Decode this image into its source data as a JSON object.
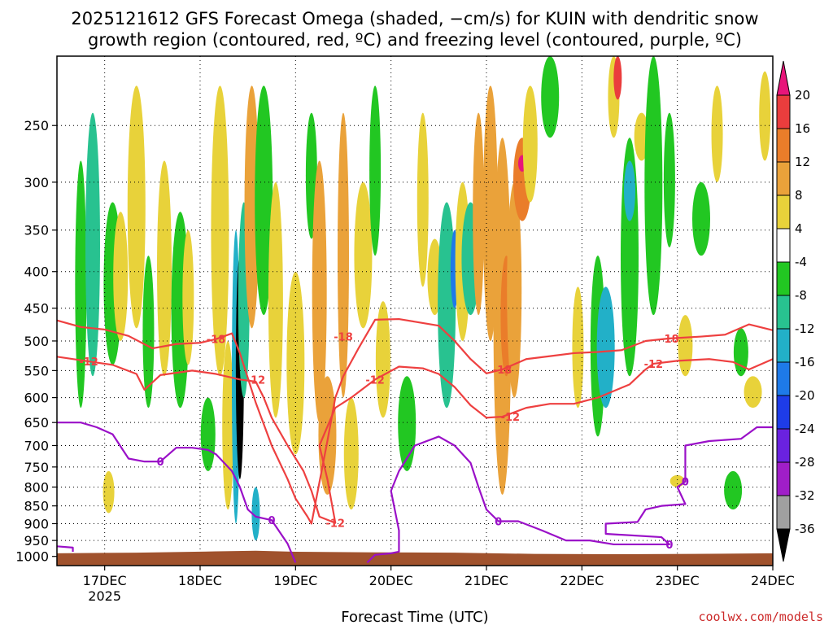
{
  "chart_data": {
    "type": "heatmap",
    "title_line1": "2025121612 GFS Forecast Omega (shaded, −cm/s) for KUIN with dendritic snow",
    "title_line2": "growth region (contoured, red, ºC) and freezing level (contoured, purple, ºC)",
    "xlabel": "Forecast Time (UTC)",
    "credit": "coolwx.com/models",
    "x_range_hours": [
      0,
      180
    ],
    "x_ticks": [
      {
        "label": "17DEC",
        "hour": 12,
        "sub": "2025"
      },
      {
        "label": "18DEC",
        "hour": 36,
        "sub": ""
      },
      {
        "label": "19DEC",
        "hour": 60,
        "sub": ""
      },
      {
        "label": "20DEC",
        "hour": 84,
        "sub": ""
      },
      {
        "label": "21DEC",
        "hour": 108,
        "sub": ""
      },
      {
        "label": "22DEC",
        "hour": 132,
        "sub": ""
      },
      {
        "label": "23DEC",
        "hour": 156,
        "sub": ""
      },
      {
        "label": "24DEC",
        "hour": 180,
        "sub": ""
      }
    ],
    "y_axis": "pressure (hPa)",
    "y_range": [
      1030,
      200
    ],
    "y_ticks": [
      250,
      300,
      350,
      400,
      450,
      500,
      550,
      600,
      650,
      700,
      750,
      800,
      850,
      900,
      950,
      1000
    ],
    "grid": true,
    "colorbar": {
      "labels": [
        20,
        16,
        12,
        8,
        4,
        -4,
        -8,
        -12,
        -16,
        -20,
        -24,
        -28,
        -32,
        -36
      ],
      "bins": [
        {
          "min": 20,
          "max": 24,
          "color": "#e8157a"
        },
        {
          "min": 16,
          "max": 20,
          "color": "#ea3d3d"
        },
        {
          "min": 12,
          "max": 16,
          "color": "#ea7d2a"
        },
        {
          "min": 8,
          "max": 12,
          "color": "#eaa23a"
        },
        {
          "min": 4,
          "max": 8,
          "color": "#e8d23a"
        },
        {
          "min": -4,
          "max": 4,
          "color": "#ffffff"
        },
        {
          "min": -8,
          "max": -4,
          "color": "#22c722"
        },
        {
          "min": -12,
          "max": -8,
          "color": "#28c290"
        },
        {
          "min": -16,
          "max": -12,
          "color": "#22b0c8"
        },
        {
          "min": -20,
          "max": -16,
          "color": "#1e7ae8"
        },
        {
          "min": -24,
          "max": -20,
          "color": "#1e3ce8"
        },
        {
          "min": -28,
          "max": -24,
          "color": "#6a22e0"
        },
        {
          "min": -32,
          "max": -28,
          "color": "#a01ec8"
        },
        {
          "min": -36,
          "max": -32,
          "color": "#a0a0a0"
        },
        {
          "min": -40,
          "max": -36,
          "color": "#000000"
        }
      ]
    },
    "omega_features": [
      {
        "hour": 6,
        "p_top": 280,
        "p_bot": 620,
        "value": -6
      },
      {
        "hour": 9,
        "p_top": 240,
        "p_bot": 560,
        "value": -10
      },
      {
        "hour": 14,
        "p_top": 320,
        "p_bot": 540,
        "value": -6
      },
      {
        "hour": 13,
        "p_top": 760,
        "p_bot": 870,
        "value": 6
      },
      {
        "hour": 16,
        "p_top": 330,
        "p_bot": 500,
        "value": 6
      },
      {
        "hour": 20,
        "p_top": 220,
        "p_bot": 480,
        "value": 6
      },
      {
        "hour": 23,
        "p_top": 380,
        "p_bot": 620,
        "value": -6
      },
      {
        "hour": 27,
        "p_top": 280,
        "p_bot": 560,
        "value": 5
      },
      {
        "hour": 31,
        "p_top": 330,
        "p_bot": 620,
        "value": -6
      },
      {
        "hour": 33,
        "p_top": 350,
        "p_bot": 540,
        "value": 5
      },
      {
        "hour": 38,
        "p_top": 600,
        "p_bot": 760,
        "value": -6
      },
      {
        "hour": 41,
        "p_top": 220,
        "p_bot": 560,
        "value": 6
      },
      {
        "hour": 43,
        "p_top": 500,
        "p_bot": 860,
        "value": 7
      },
      {
        "hour": 45,
        "p_top": 350,
        "p_bot": 900,
        "value": -16
      },
      {
        "hour": 46,
        "p_top": 380,
        "p_bot": 780,
        "value": -38
      },
      {
        "hour": 47,
        "p_top": 320,
        "p_bot": 600,
        "value": -10
      },
      {
        "hour": 49,
        "p_top": 220,
        "p_bot": 480,
        "value": 9
      },
      {
        "hour": 52,
        "p_top": 220,
        "p_bot": 460,
        "value": -6
      },
      {
        "hour": 50,
        "p_top": 800,
        "p_bot": 950,
        "value": -16
      },
      {
        "hour": 55,
        "p_top": 300,
        "p_bot": 640,
        "value": 6
      },
      {
        "hour": 60,
        "p_top": 400,
        "p_bot": 720,
        "value": 5
      },
      {
        "hour": 64,
        "p_top": 240,
        "p_bot": 360,
        "value": -6
      },
      {
        "hour": 66,
        "p_top": 280,
        "p_bot": 650,
        "value": 10
      },
      {
        "hour": 68,
        "p_top": 560,
        "p_bot": 820,
        "value": 8
      },
      {
        "hour": 72,
        "p_top": 240,
        "p_bot": 600,
        "value": 9
      },
      {
        "hour": 74,
        "p_top": 600,
        "p_bot": 860,
        "value": 6
      },
      {
        "hour": 77,
        "p_top": 300,
        "p_bot": 480,
        "value": 5
      },
      {
        "hour": 80,
        "p_top": 220,
        "p_bot": 380,
        "value": -6
      },
      {
        "hour": 82,
        "p_top": 440,
        "p_bot": 640,
        "value": 5
      },
      {
        "hour": 88,
        "p_top": 560,
        "p_bot": 760,
        "value": -6
      },
      {
        "hour": 92,
        "p_top": 240,
        "p_bot": 420,
        "value": 5
      },
      {
        "hour": 95,
        "p_top": 360,
        "p_bot": 460,
        "value": 5
      },
      {
        "hour": 98,
        "p_top": 320,
        "p_bot": 620,
        "value": -10
      },
      {
        "hour": 100,
        "p_top": 350,
        "p_bot": 450,
        "value": -18
      },
      {
        "hour": 102,
        "p_top": 300,
        "p_bot": 500,
        "value": 6
      },
      {
        "hour": 104,
        "p_top": 320,
        "p_bot": 460,
        "value": -12
      },
      {
        "hour": 106,
        "p_top": 240,
        "p_bot": 460,
        "value": 10
      },
      {
        "hour": 109,
        "p_top": 220,
        "p_bot": 500,
        "value": 8
      },
      {
        "hour": 112,
        "p_top": 260,
        "p_bot": 820,
        "value": 10
      },
      {
        "hour": 113,
        "p_top": 380,
        "p_bot": 560,
        "value": 14
      },
      {
        "hour": 115,
        "p_top": 300,
        "p_bot": 600,
        "value": 8
      },
      {
        "hour": 117,
        "p_top": 260,
        "p_bot": 340,
        "value": 14
      },
      {
        "hour": 117,
        "p_top": 275,
        "p_bot": 290,
        "value": 21
      },
      {
        "hour": 119,
        "p_top": 220,
        "p_bot": 320,
        "value": 5
      },
      {
        "hour": 124,
        "p_top": 200,
        "p_bot": 260,
        "value": -6
      },
      {
        "hour": 131,
        "p_top": 420,
        "p_bot": 620,
        "value": 5
      },
      {
        "hour": 136,
        "p_top": 380,
        "p_bot": 680,
        "value": -7
      },
      {
        "hour": 138,
        "p_top": 420,
        "p_bot": 620,
        "value": -13
      },
      {
        "hour": 140,
        "p_top": 200,
        "p_bot": 260,
        "value": 6
      },
      {
        "hour": 141,
        "p_top": 200,
        "p_bot": 230,
        "value": 18
      },
      {
        "hour": 144,
        "p_top": 260,
        "p_bot": 560,
        "value": -6
      },
      {
        "hour": 144,
        "p_top": 280,
        "p_bot": 340,
        "value": -13
      },
      {
        "hour": 147,
        "p_top": 240,
        "p_bot": 280,
        "value": 5
      },
      {
        "hour": 150,
        "p_top": 200,
        "p_bot": 460,
        "value": -7
      },
      {
        "hour": 154,
        "p_top": 240,
        "p_bot": 370,
        "value": -6
      },
      {
        "hour": 158,
        "p_top": 460,
        "p_bot": 560,
        "value": 5
      },
      {
        "hour": 162,
        "p_top": 300,
        "p_bot": 380,
        "value": -6
      },
      {
        "hour": 166,
        "p_top": 220,
        "p_bot": 300,
        "value": 5
      },
      {
        "hour": 172,
        "p_top": 480,
        "p_bot": 560,
        "value": -6
      },
      {
        "hour": 175,
        "p_top": 560,
        "p_bot": 620,
        "value": 5
      },
      {
        "hour": 178,
        "p_top": 210,
        "p_bot": 280,
        "value": 5
      },
      {
        "hour": 156,
        "p_top": 770,
        "p_bot": 800,
        "value": 5
      },
      {
        "hour": 170,
        "p_top": 760,
        "p_bot": 860,
        "value": -6
      }
    ],
    "contours": [
      {
        "name": "dgz-minus18",
        "color": "#ee4040",
        "label": "-18",
        "label_at": [
          [
            40,
            497
          ],
          [
            72,
            493
          ],
          [
            112,
            548
          ],
          [
            154,
            496
          ]
        ],
        "points": [
          [
            0,
            468
          ],
          [
            6,
            478
          ],
          [
            12,
            482
          ],
          [
            18,
            492
          ],
          [
            24,
            512
          ],
          [
            30,
            505
          ],
          [
            36,
            503
          ],
          [
            40,
            497
          ],
          [
            44,
            488
          ],
          [
            46,
            520
          ],
          [
            50,
            610
          ],
          [
            54,
            700
          ],
          [
            58,
            780
          ],
          [
            60,
            830
          ],
          [
            63,
            880
          ],
          [
            64,
            900
          ],
          [
            68,
            690
          ],
          [
            70,
            600
          ],
          [
            72,
            560
          ],
          [
            76,
            510
          ],
          [
            80,
            467
          ],
          [
            86,
            466
          ],
          [
            90,
            470
          ],
          [
            96,
            476
          ],
          [
            100,
            500
          ],
          [
            104,
            530
          ],
          [
            108,
            555
          ],
          [
            112,
            548
          ],
          [
            118,
            530
          ],
          [
            124,
            525
          ],
          [
            130,
            520
          ],
          [
            136,
            518
          ],
          [
            142,
            515
          ],
          [
            148,
            500
          ],
          [
            154,
            496
          ],
          [
            162,
            493
          ],
          [
            168,
            490
          ],
          [
            174,
            474
          ],
          [
            180,
            483
          ]
        ]
      },
      {
        "name": "dgz-minus12",
        "color": "#ee4040",
        "label": "-12",
        "label_at": [
          [
            8,
            534
          ],
          [
            50,
            566
          ],
          [
            80,
            566
          ],
          [
            114,
            638
          ],
          [
            150,
            538
          ],
          [
            70,
            898
          ]
        ],
        "points": [
          [
            0,
            526
          ],
          [
            8,
            534
          ],
          [
            14,
            540
          ],
          [
            20,
            556
          ],
          [
            22,
            585
          ],
          [
            26,
            558
          ],
          [
            34,
            550
          ],
          [
            40,
            556
          ],
          [
            46,
            566
          ],
          [
            50,
            570
          ],
          [
            52,
            600
          ],
          [
            54,
            640
          ],
          [
            58,
            700
          ],
          [
            62,
            760
          ],
          [
            64,
            810
          ],
          [
            66,
            880
          ],
          [
            70,
            898
          ],
          [
            68,
            780
          ],
          [
            66,
            700
          ],
          [
            70,
            620
          ],
          [
            74,
            600
          ],
          [
            80,
            566
          ],
          [
            86,
            543
          ],
          [
            92,
            546
          ],
          [
            96,
            556
          ],
          [
            100,
            580
          ],
          [
            104,
            615
          ],
          [
            108,
            640
          ],
          [
            112,
            638
          ],
          [
            118,
            620
          ],
          [
            124,
            612
          ],
          [
            130,
            612
          ],
          [
            136,
            600
          ],
          [
            144,
            575
          ],
          [
            148,
            548
          ],
          [
            150,
            538
          ],
          [
            156,
            533
          ],
          [
            164,
            530
          ],
          [
            170,
            535
          ],
          [
            174,
            548
          ],
          [
            180,
            530
          ]
        ]
      },
      {
        "name": "freezing-level-west",
        "color": "#9a10c8",
        "label": "0",
        "label_at": [
          [
            26,
            737
          ],
          [
            54,
            890
          ]
        ],
        "points": [
          [
            0,
            650
          ],
          [
            6,
            650
          ],
          [
            10,
            660
          ],
          [
            14,
            675
          ],
          [
            18,
            730
          ],
          [
            22,
            737
          ],
          [
            26,
            737
          ],
          [
            30,
            705
          ],
          [
            34,
            705
          ],
          [
            38,
            710
          ],
          [
            40,
            720
          ],
          [
            44,
            760
          ],
          [
            46,
            800
          ],
          [
            48,
            860
          ],
          [
            50,
            880
          ],
          [
            54,
            890
          ],
          [
            58,
            960
          ],
          [
            60,
            1020
          ]
        ]
      },
      {
        "name": "freezing-level-east",
        "color": "#9a10c8",
        "label": "0",
        "label_at": [
          [
            111,
            893
          ],
          [
            154,
            962
          ],
          [
            158,
            786
          ]
        ],
        "points": [
          [
            78,
            1020
          ],
          [
            80,
            995
          ],
          [
            84,
            990
          ],
          [
            86,
            985
          ],
          [
            86,
            920
          ],
          [
            84,
            810
          ],
          [
            86,
            760
          ],
          [
            90,
            700
          ],
          [
            96,
            680
          ],
          [
            100,
            700
          ],
          [
            104,
            740
          ],
          [
            106,
            800
          ],
          [
            108,
            860
          ],
          [
            111,
            893
          ],
          [
            116,
            893
          ],
          [
            122,
            920
          ],
          [
            128,
            950
          ],
          [
            134,
            950
          ],
          [
            140,
            962
          ],
          [
            146,
            962
          ],
          [
            154,
            962
          ],
          [
            152,
            940
          ],
          [
            138,
            930
          ],
          [
            138,
            900
          ],
          [
            146,
            895
          ],
          [
            148,
            860
          ],
          [
            152,
            850
          ],
          [
            158,
            845
          ],
          [
            156,
            800
          ],
          [
            158,
            786
          ],
          [
            158,
            700
          ],
          [
            164,
            690
          ],
          [
            172,
            685
          ],
          [
            176,
            660
          ],
          [
            180,
            660
          ]
        ]
      },
      {
        "name": "freezing-level-left-stub",
        "color": "#9a10c8",
        "label": "",
        "label_at": [],
        "points": [
          [
            0,
            968
          ],
          [
            4,
            972
          ],
          [
            4,
            985
          ]
        ]
      }
    ],
    "terrain": {
      "color": "#a0522d",
      "surface_p": [
        [
          0,
          990
        ],
        [
          20,
          988
        ],
        [
          40,
          984
        ],
        [
          50,
          982
        ],
        [
          60,
          985
        ],
        [
          80,
          987
        ],
        [
          100,
          988
        ],
        [
          120,
          992
        ],
        [
          140,
          993
        ],
        [
          160,
          992
        ],
        [
          180,
          990
        ]
      ]
    }
  }
}
